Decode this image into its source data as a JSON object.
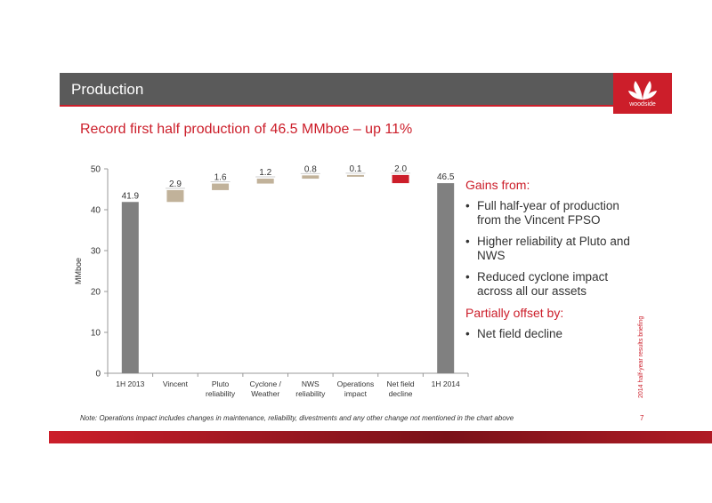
{
  "header": {
    "title": "Production",
    "logo_text": "woodside"
  },
  "subtitle": "Record first half production of 46.5 MMboe – up 11%",
  "sidebar_text": {
    "gains_heading": "Gains from:",
    "gains_items": [
      "Full half-year of production from the Vincent FPSO",
      "Higher reliability at Pluto and NWS",
      "Reduced cyclone impact across all our assets"
    ],
    "offset_heading": "Partially offset by:",
    "offset_items": [
      "Net field decline"
    ]
  },
  "note": "Note: Operations impact includes changes in maintenance, reliability, divestments and any other change not mentioned in the chart above",
  "page_number": "7",
  "side_label": "2014 half-year results briefing",
  "colors": {
    "accent": "#cc1e2a",
    "header": "#5a5a5a",
    "total_bar": "#808080",
    "increase_bar": "#c1b29a",
    "decrease_bar": "#cc1e2a"
  },
  "chart_data": {
    "type": "bar",
    "subtype": "waterfall",
    "ylabel": "MMboe",
    "ylim": [
      0,
      50
    ],
    "yticks": [
      0,
      10,
      20,
      30,
      40,
      50
    ],
    "categories": [
      [
        "1H 2013"
      ],
      [
        "Vincent"
      ],
      [
        "Pluto",
        "reliability"
      ],
      [
        "Cyclone /",
        "Weather"
      ],
      [
        "NWS",
        "reliability"
      ],
      [
        "Operations",
        "impact"
      ],
      [
        "Net field",
        "decline"
      ],
      [
        "1H 2014"
      ]
    ],
    "bars": [
      {
        "kind": "total",
        "value": 41.9,
        "label": "41.9"
      },
      {
        "kind": "increase",
        "value": 2.9,
        "label": "2.9"
      },
      {
        "kind": "increase",
        "value": 1.6,
        "label": "1.6"
      },
      {
        "kind": "increase",
        "value": 1.2,
        "label": "1.2"
      },
      {
        "kind": "increase",
        "value": 0.8,
        "label": "0.8"
      },
      {
        "kind": "increase",
        "value": 0.1,
        "label": "0.1"
      },
      {
        "kind": "decrease",
        "value": 2.0,
        "label": "2.0"
      },
      {
        "kind": "total",
        "value": 46.5,
        "label": "46.5"
      }
    ]
  }
}
